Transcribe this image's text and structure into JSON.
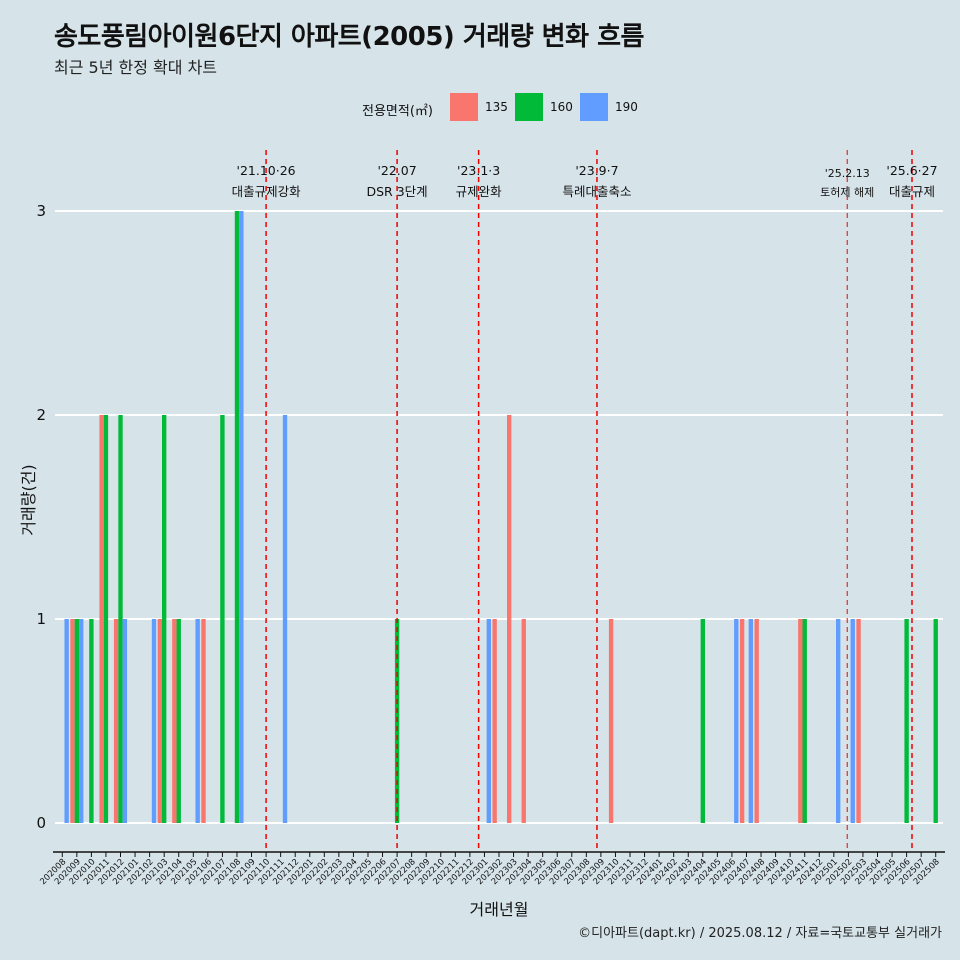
{
  "title": "송도풍림아이원6단지 아파트(2005) 거래량 변화 흐름",
  "subtitle": "최근 5년 한정 확대 차트",
  "caption": "©디아파트(dapt.kr) / 2025.08.12 / 자료=국토교통부 실거래가",
  "colors": {
    "135": "#f8766d",
    "160": "#00ba38",
    "190": "#619cff",
    "event_line": "#ee0000",
    "background": "#d6e4ea"
  },
  "chart_data": {
    "type": "bar",
    "xlabel": "거래년월",
    "ylabel": "거래량(건)",
    "ylim": [
      0,
      3
    ],
    "yticks": [
      0,
      1,
      2,
      3
    ],
    "legend": {
      "title": "전용면적(㎡)",
      "position": "top",
      "entries": [
        "135",
        "160",
        "190"
      ]
    },
    "categories": [
      "202008",
      "202009",
      "202010",
      "202011",
      "202012",
      "202101",
      "202102",
      "202103",
      "202104",
      "202105",
      "202106",
      "202107",
      "202108",
      "202109",
      "202110",
      "202111",
      "202112",
      "202201",
      "202202",
      "202203",
      "202204",
      "202205",
      "202206",
      "202207",
      "202208",
      "202209",
      "202210",
      "202211",
      "202212",
      "202301",
      "202302",
      "202303",
      "202304",
      "202305",
      "202306",
      "202307",
      "202308",
      "202309",
      "202310",
      "202311",
      "202312",
      "202401",
      "202402",
      "202403",
      "202404",
      "202405",
      "202406",
      "202407",
      "202408",
      "202409",
      "202410",
      "202411",
      "202412",
      "202501",
      "202502",
      "202503",
      "202504",
      "202505",
      "202506",
      "202507",
      "202508"
    ],
    "series": [
      {
        "name": "135",
        "values": [
          0,
          1,
          0,
          2,
          1,
          0,
          0,
          1,
          1,
          0,
          1,
          0,
          0,
          0,
          0,
          0,
          0,
          0,
          0,
          0,
          0,
          0,
          0,
          0,
          0,
          0,
          0,
          0,
          0,
          0,
          1,
          2,
          1,
          0,
          0,
          0,
          0,
          0,
          1,
          0,
          0,
          0,
          0,
          0,
          0,
          0,
          0,
          1,
          1,
          0,
          0,
          1,
          0,
          0,
          0,
          1,
          0,
          0,
          0,
          0,
          0
        ]
      },
      {
        "name": "160",
        "values": [
          0,
          1,
          1,
          2,
          2,
          0,
          0,
          2,
          1,
          0,
          0,
          2,
          3,
          0,
          0,
          0,
          0,
          0,
          0,
          0,
          0,
          0,
          0,
          1,
          0,
          0,
          0,
          0,
          0,
          0,
          0,
          0,
          0,
          0,
          0,
          0,
          0,
          0,
          0,
          0,
          0,
          0,
          0,
          0,
          1,
          0,
          0,
          0,
          0,
          0,
          0,
          1,
          0,
          0,
          0,
          0,
          0,
          0,
          1,
          0,
          1
        ]
      },
      {
        "name": "190",
        "values": [
          1,
          1,
          0,
          0,
          1,
          0,
          1,
          0,
          0,
          1,
          0,
          0,
          3,
          0,
          0,
          2,
          0,
          0,
          0,
          0,
          0,
          0,
          0,
          0,
          0,
          0,
          0,
          0,
          0,
          1,
          0,
          0,
          0,
          0,
          0,
          0,
          0,
          0,
          0,
          0,
          0,
          0,
          0,
          0,
          0,
          0,
          1,
          1,
          0,
          0,
          0,
          0,
          0,
          1,
          1,
          0,
          0,
          0,
          0,
          0,
          0
        ]
      }
    ],
    "events": [
      {
        "month": "202110",
        "pos": 0.5,
        "date": "'21.10·26",
        "label": "대출규제강화",
        "small": false
      },
      {
        "month": "202207",
        "pos": 0.5,
        "date": "'22.07",
        "label": "DSR 3단계",
        "small": false
      },
      {
        "month": "202301",
        "pos": 0.1,
        "date": "'23.1·3",
        "label": "규제완화",
        "small": false
      },
      {
        "month": "202309",
        "pos": 0.23,
        "date": "'23.9·7",
        "label": "특례대출축소",
        "small": false
      },
      {
        "month": "202502",
        "pos": 0.42,
        "date": "'25.2.13",
        "label": "토허제 해제",
        "small": true
      },
      {
        "month": "202506",
        "pos": 0.87,
        "date": "'25.6·27",
        "label": "대출규제",
        "small": false
      }
    ]
  }
}
